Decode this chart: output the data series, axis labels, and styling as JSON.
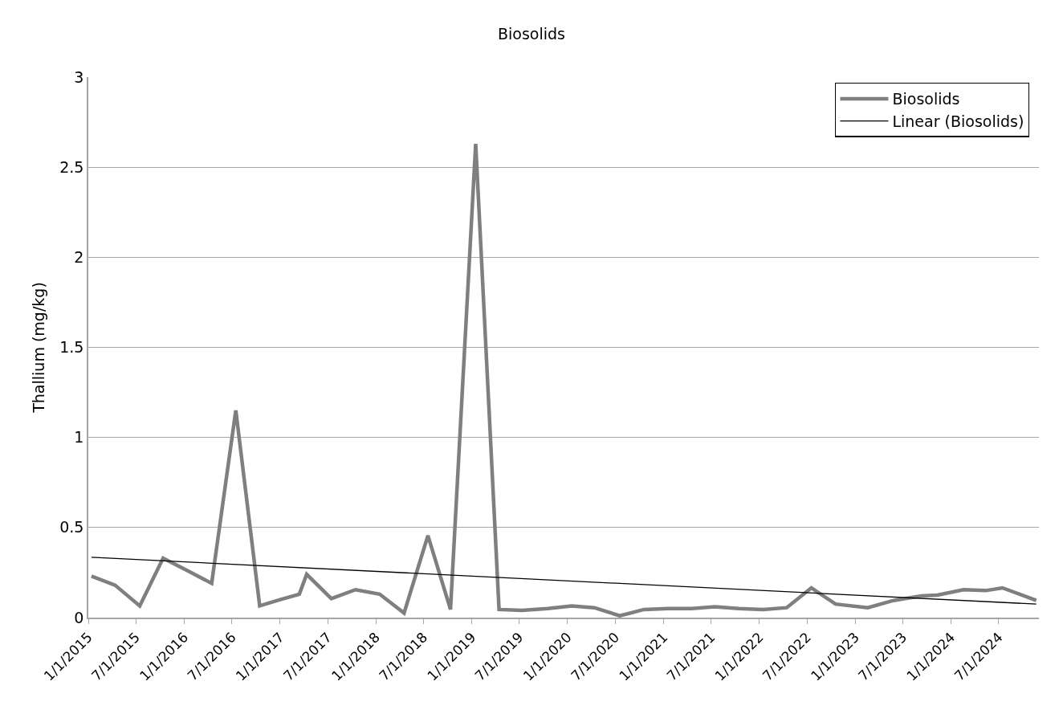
{
  "chart_data": {
    "type": "line",
    "title": "Biosolids",
    "ylabel": "Thallium (mg/kg)",
    "x": [
      "2015-01-13",
      "2015-04-13",
      "2015-07-16",
      "2015-10-13",
      "2016-01-15",
      "2016-04-15",
      "2016-07-16",
      "2016-10-15",
      "2017-01-01",
      "2017-03-15",
      "2017-04-12",
      "2017-07-15",
      "2017-10-15",
      "2018-01-15",
      "2018-04-18",
      "2018-07-18",
      "2018-10-12",
      "2019-01-16",
      "2019-04-15",
      "2019-07-12",
      "2019-10-17",
      "2020-01-17",
      "2020-04-12",
      "2020-07-18",
      "2020-10-18",
      "2021-01-18",
      "2021-04-18",
      "2021-07-15",
      "2021-10-15",
      "2022-01-15",
      "2022-04-15",
      "2022-07-18",
      "2022-10-18",
      "2023-02-18",
      "2023-05-27",
      "2023-09-10",
      "2023-11-10",
      "2024-02-18",
      "2024-05-12",
      "2024-07-15",
      "2024-11-21"
    ],
    "series": [
      {
        "name": "Biosolids",
        "color": "#7f7f7f",
        "values": [
          0.23,
          0.18,
          0.065,
          0.33,
          0.26,
          0.19,
          1.15,
          0.065,
          0.1,
          0.13,
          0.24,
          0.105,
          0.155,
          0.13,
          0.025,
          0.455,
          0.045,
          2.63,
          0.045,
          0.04,
          0.05,
          0.065,
          0.055,
          0.01,
          0.045,
          0.05,
          0.05,
          0.06,
          0.05,
          0.045,
          0.055,
          0.165,
          0.075,
          0.055,
          0.095,
          0.12,
          0.125,
          0.155,
          0.15,
          0.165,
          0.095
        ]
      },
      {
        "name": "Linear (Biosolids)",
        "type": "line",
        "color": "#000000",
        "x": [
          "2015-01-13",
          "2024-11-21"
        ],
        "values": [
          0.335,
          0.075
        ]
      }
    ],
    "xlim": [
      "2015-01-01",
      "2024-12-01"
    ],
    "xticks": [
      {
        "value": "2015-01-01",
        "label": "1/1/2015"
      },
      {
        "value": "2015-07-01",
        "label": "7/1/2015"
      },
      {
        "value": "2016-01-01",
        "label": "1/1/2016"
      },
      {
        "value": "2016-07-01",
        "label": "7/1/2016"
      },
      {
        "value": "2017-01-01",
        "label": "1/1/2017"
      },
      {
        "value": "2017-07-01",
        "label": "7/1/2017"
      },
      {
        "value": "2018-01-01",
        "label": "1/1/2018"
      },
      {
        "value": "2018-07-01",
        "label": "7/1/2018"
      },
      {
        "value": "2019-01-01",
        "label": "1/1/2019"
      },
      {
        "value": "2019-07-01",
        "label": "7/1/2019"
      },
      {
        "value": "2020-01-01",
        "label": "1/1/2020"
      },
      {
        "value": "2020-07-01",
        "label": "7/1/2020"
      },
      {
        "value": "2021-01-01",
        "label": "1/1/2021"
      },
      {
        "value": "2021-07-01",
        "label": "7/1/2021"
      },
      {
        "value": "2022-01-01",
        "label": "1/1/2022"
      },
      {
        "value": "2022-07-01",
        "label": "7/1/2022"
      },
      {
        "value": "2023-01-01",
        "label": "1/1/2023"
      },
      {
        "value": "2023-07-01",
        "label": "7/1/2023"
      },
      {
        "value": "2024-01-01",
        "label": "1/1/2024"
      },
      {
        "value": "2024-07-01",
        "label": "7/1/2024"
      }
    ],
    "ylim": [
      0,
      3
    ],
    "yticks": [
      0,
      0.5,
      1,
      1.5,
      2,
      2.5,
      3
    ],
    "grid": "y",
    "legend": "top right",
    "marker": "none",
    "line_style": "solid"
  }
}
